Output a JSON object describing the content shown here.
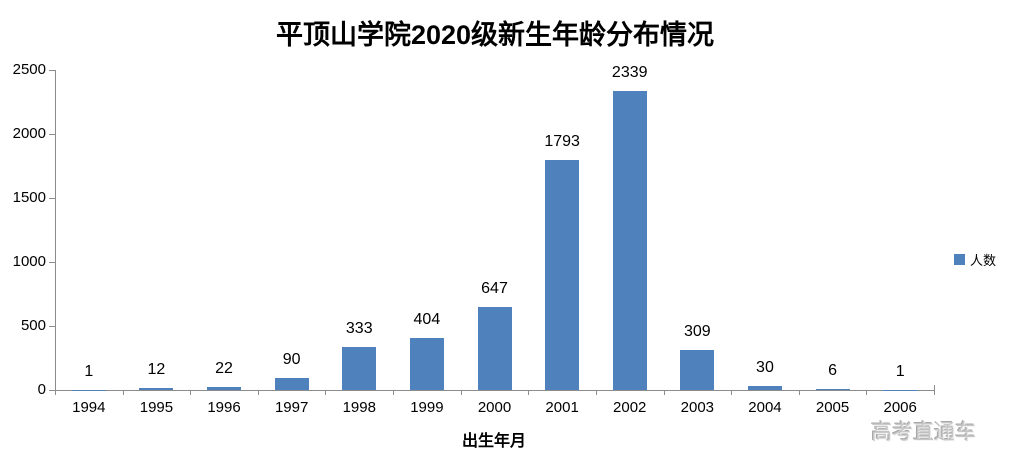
{
  "watermark": "高考直通车",
  "legend": {
    "label": "人数",
    "color": "#4F81BD"
  },
  "chart_data": {
    "type": "bar",
    "title": "平顶山学院2020级新生年龄分布情况",
    "categories": [
      "1994",
      "1995",
      "1996",
      "1997",
      "1998",
      "1999",
      "2000",
      "2001",
      "2002",
      "2003",
      "2004",
      "2005",
      "2006"
    ],
    "series": [
      {
        "name": "人数",
        "values": [
          1,
          12,
          22,
          90,
          333,
          404,
          647,
          1793,
          2339,
          309,
          30,
          6,
          1
        ]
      }
    ],
    "data_labels": [
      1,
      12,
      22,
      90,
      333,
      404,
      647,
      1793,
      2339,
      309,
      30,
      6,
      1
    ],
    "xlabel": "出生年月",
    "ylabel": "",
    "ylim": [
      0,
      2500
    ],
    "yticks": [
      0,
      500,
      1000,
      1500,
      2000,
      2500
    ],
    "grid": false,
    "legend_position": "right",
    "bar_color": "#4F81BD",
    "axis_color": "#8c8c8c",
    "label_color": "#000000"
  }
}
